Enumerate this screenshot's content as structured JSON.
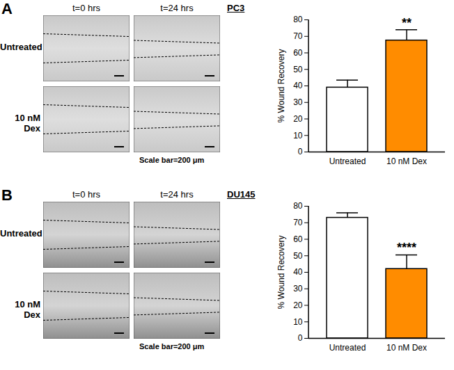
{
  "chart_data": [
    {
      "type": "bar",
      "title": "PC3",
      "ylabel": "% Wound Recovery",
      "categories": [
        "Untreated",
        "10 nM Dex"
      ],
      "values": [
        39,
        67.5
      ],
      "errors": [
        4.5,
        6.5
      ],
      "colors": [
        "#ffffff",
        "#ff8c00"
      ],
      "ylim": [
        0,
        80
      ],
      "yticks": [
        0,
        10,
        20,
        30,
        40,
        50,
        60,
        70,
        80
      ],
      "annotations": [
        {
          "category": "10 nM Dex",
          "text": "**"
        }
      ]
    },
    {
      "type": "bar",
      "title": "DU145",
      "ylabel": "% Wound Recovery",
      "categories": [
        "Untreated",
        "10 nM Dex"
      ],
      "values": [
        73,
        42
      ],
      "errors": [
        3,
        8.5
      ],
      "colors": [
        "#ffffff",
        "#ff8c00"
      ],
      "ylim": [
        0,
        80
      ],
      "yticks": [
        0,
        10,
        20,
        30,
        40,
        50,
        60,
        70,
        80
      ],
      "annotations": [
        {
          "category": "10 nM Dex",
          "text": "****"
        }
      ]
    }
  ],
  "panels": [
    {
      "label": "A",
      "columns": [
        "t=0 hrs",
        "t=24 hrs"
      ],
      "rows": [
        "Untreated",
        "10 nM Dex"
      ],
      "scale_bar": "Scale bar=200 μm"
    },
    {
      "label": "B",
      "columns": [
        "t=0 hrs",
        "t=24 hrs"
      ],
      "rows": [
        "Untreated",
        "10 nM Dex"
      ],
      "scale_bar": "Scale bar=200 μm"
    }
  ]
}
